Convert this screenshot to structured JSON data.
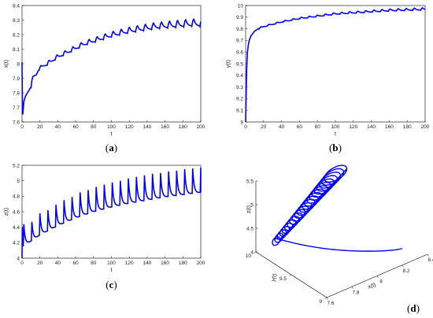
{
  "chart_data": [
    {
      "id": "a",
      "panel_label": "(a)",
      "type": "line",
      "xlabel": "t",
      "ylabel": "x(t)",
      "xlim": [
        0,
        200
      ],
      "ylim": [
        7.6,
        8.4
      ],
      "xticks": [
        0,
        20,
        40,
        60,
        80,
        100,
        120,
        140,
        160,
        180,
        200
      ],
      "yticks": [
        7.6,
        7.7,
        7.8,
        7.9,
        8.0,
        8.1,
        8.2,
        8.3,
        8.4
      ],
      "ytick_labels": [
        "7.6",
        "7.7",
        "7.8",
        "7.9",
        "8",
        "8.1",
        "8.2",
        "8.3",
        "8.4"
      ],
      "line_color": "#0000ff",
      "series": [
        {
          "x": [
            0,
            0.5,
            1,
            2,
            4,
            6,
            8,
            10,
            11,
            12,
            14,
            16,
            18,
            20,
            22,
            24,
            26,
            28,
            30,
            35,
            40,
            50,
            60,
            70,
            80,
            90,
            100,
            110,
            120,
            130,
            140,
            150,
            160,
            170,
            180,
            190,
            200
          ],
          "y": [
            8.01,
            7.65,
            7.66,
            7.74,
            7.78,
            7.8,
            7.82,
            7.84,
            7.88,
            7.9,
            7.92,
            7.93,
            7.96,
            7.97,
            7.98,
            7.99,
            7.995,
            8.0,
            8.01,
            8.03,
            8.05,
            8.08,
            8.11,
            8.14,
            8.16,
            8.18,
            8.2,
            8.215,
            8.23,
            8.24,
            8.25,
            8.26,
            8.265,
            8.27,
            8.275,
            8.28,
            8.28
          ],
          "oscillation": {
            "start": 10,
            "period": 9,
            "amplitude_start": 0.02,
            "amplitude_end": 0.05
          }
        }
      ]
    },
    {
      "id": "b",
      "panel_label": "(b)",
      "type": "line",
      "xlabel": "t",
      "ylabel": "y(t)",
      "xlim": [
        0,
        200
      ],
      "ylim": [
        9,
        10
      ],
      "xticks": [
        0,
        20,
        40,
        60,
        80,
        100,
        120,
        140,
        160,
        180,
        200
      ],
      "yticks": [
        9,
        9.1,
        9.2,
        9.3,
        9.4,
        9.5,
        9.6,
        9.7,
        9.8,
        9.9,
        10
      ],
      "ytick_labels": [
        "9",
        "9.1",
        "9.2",
        "9.3",
        "9.4",
        "9.5",
        "9.6",
        "9.7",
        "9.8",
        "9.9",
        "10"
      ],
      "line_color": "#0000ff",
      "series": [
        {
          "x": [
            0,
            0.5,
            1,
            1.5,
            2,
            3,
            4,
            5,
            6,
            8,
            10,
            14,
            20,
            30,
            40,
            50,
            60,
            80,
            100,
            120,
            140,
            160,
            180,
            200
          ],
          "y": [
            9.0,
            9.2,
            9.4,
            9.52,
            9.6,
            9.66,
            9.7,
            9.72,
            9.74,
            9.76,
            9.78,
            9.8,
            9.82,
            9.84,
            9.86,
            9.875,
            9.89,
            9.91,
            9.93,
            9.94,
            9.95,
            9.96,
            9.965,
            9.97
          ],
          "oscillation": {
            "start": 15,
            "period": 9,
            "amplitude_start": 0.01,
            "amplitude_end": 0.02
          }
        }
      ]
    },
    {
      "id": "c",
      "panel_label": "(c)",
      "type": "line",
      "xlabel": "t",
      "ylabel": "z(t)",
      "xlim": [
        0,
        200
      ],
      "ylim": [
        4,
        5.2
      ],
      "xticks": [
        0,
        20,
        40,
        60,
        80,
        100,
        120,
        140,
        160,
        180,
        200
      ],
      "yticks": [
        4,
        4.2,
        4.4,
        4.6,
        4.8,
        5,
        5.2
      ],
      "ytick_labels": [
        "4",
        "4.2",
        "4.4",
        "4.6",
        "4.8",
        "5",
        "5.2"
      ],
      "line_color": "#0000ff",
      "series": [
        {
          "baseline_x": [
            0,
            10,
            20,
            40,
            60,
            80,
            100,
            120,
            140,
            160,
            180,
            200
          ],
          "baseline_y": [
            4.15,
            4.22,
            4.3,
            4.42,
            4.52,
            4.6,
            4.66,
            4.71,
            4.75,
            4.79,
            4.82,
            4.85
          ],
          "peaks_x": [
            2,
            11,
            20,
            29,
            38,
            47,
            56,
            65,
            74,
            83,
            92,
            101,
            110,
            119,
            128,
            137,
            146,
            155,
            164,
            173,
            182,
            191,
            200
          ],
          "peaks_y": [
            4.44,
            4.47,
            4.58,
            4.62,
            4.69,
            4.75,
            4.79,
            4.85,
            4.88,
            4.92,
            4.95,
            4.98,
            5.0,
            5.03,
            5.05,
            5.07,
            5.09,
            5.1,
            5.12,
            5.13,
            5.15,
            5.16,
            5.17
          ]
        }
      ]
    },
    {
      "id": "d",
      "panel_label": "(d)",
      "type": "line",
      "projection": "3d",
      "xlabel": "x(t)",
      "ylabel": "y(t)",
      "zlabel": "z(t)",
      "xlim": [
        7.6,
        8.4
      ],
      "ylim": [
        9,
        10
      ],
      "zlim": [
        4,
        5.5
      ],
      "xticks": [
        7.6,
        7.8,
        8,
        8.2,
        8.4
      ],
      "xtick_labels": [
        "7.6",
        "7.8",
        "8",
        "8.2",
        "8.4"
      ],
      "yticks": [
        9,
        9.5,
        10
      ],
      "ytick_labels": [
        "9",
        "9.5",
        "10"
      ],
      "zticks": [
        4,
        4.5,
        5,
        5.5
      ],
      "ztick_labels": [
        "4",
        "4.5",
        "5",
        "5.5"
      ],
      "line_color": "#0000ff"
    }
  ]
}
